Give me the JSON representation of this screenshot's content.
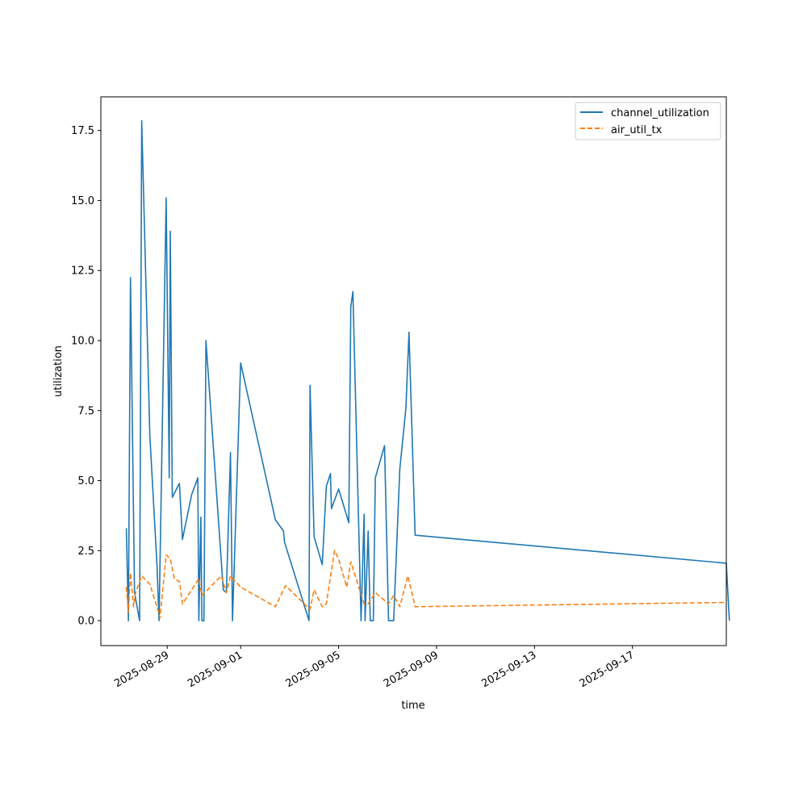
{
  "chart_data": {
    "type": "line",
    "title": "",
    "xlabel": "time",
    "ylabel": "utilization",
    "x_axis": {
      "type": "date",
      "range": [
        "2025-08-26T07:00",
        "2025-09-20T20:00"
      ],
      "ticks": [
        "2025-08-29",
        "2025-09-01",
        "2025-09-05",
        "2025-09-09",
        "2025-09-13",
        "2025-09-17"
      ]
    },
    "y_axis": {
      "range": [
        -0.89,
        18.7
      ],
      "ticks": [
        0.0,
        2.5,
        5.0,
        7.5,
        10.0,
        12.5,
        15.0,
        17.5
      ],
      "tick_labels": [
        "0.0",
        "2.5",
        "5.0",
        "7.5",
        "10.0",
        "12.5",
        "15.0",
        "17.5"
      ]
    },
    "grid": false,
    "legend_position": "top-right",
    "series": [
      {
        "name": "channel_utilization",
        "color": "#1f77b4",
        "dash": "solid",
        "points": [
          [
            "2025-08-27T08:00",
            3.3
          ],
          [
            "2025-08-27T10:00",
            0.0
          ],
          [
            "2025-08-27T12:00",
            12.25
          ],
          [
            "2025-08-27T16:00",
            1.0
          ],
          [
            "2025-08-27T21:00",
            0.0
          ],
          [
            "2025-08-27T23:00",
            17.85
          ],
          [
            "2025-08-28T07:00",
            6.6
          ],
          [
            "2025-08-28T14:00",
            2.0
          ],
          [
            "2025-08-28T16:00",
            0.0
          ],
          [
            "2025-08-28T23:00",
            15.1
          ],
          [
            "2025-08-29T02:00",
            5.1
          ],
          [
            "2025-08-29T03:00",
            13.9
          ],
          [
            "2025-08-29T05:00",
            4.4
          ],
          [
            "2025-08-29T12:00",
            4.9
          ],
          [
            "2025-08-29T15:00",
            2.9
          ],
          [
            "2025-08-30T00:00",
            4.5
          ],
          [
            "2025-08-30T06:00",
            5.1
          ],
          [
            "2025-08-30T07:00",
            0.0
          ],
          [
            "2025-08-30T09:00",
            3.7
          ],
          [
            "2025-08-30T10:00",
            0.0
          ],
          [
            "2025-08-30T12:00",
            0.0
          ],
          [
            "2025-08-30T14:00",
            10.0
          ],
          [
            "2025-08-31T07:00",
            1.1
          ],
          [
            "2025-08-31T10:00",
            1.0
          ],
          [
            "2025-08-31T14:00",
            6.0
          ],
          [
            "2025-08-31T16:00",
            0.0
          ],
          [
            "2025-09-01T00:00",
            9.2
          ],
          [
            "2025-09-02T10:00",
            3.6
          ],
          [
            "2025-09-02T18:00",
            3.2
          ],
          [
            "2025-09-02T19:00",
            2.8
          ],
          [
            "2025-09-03T19:00",
            0.0
          ],
          [
            "2025-09-03T20:00",
            8.4
          ],
          [
            "2025-09-04T00:00",
            3.0
          ],
          [
            "2025-09-04T08:00",
            2.0
          ],
          [
            "2025-09-04T12:00",
            4.8
          ],
          [
            "2025-09-04T16:00",
            5.25
          ],
          [
            "2025-09-04T17:00",
            4.0
          ],
          [
            "2025-09-05T00:00",
            4.7
          ],
          [
            "2025-09-05T10:00",
            3.5
          ],
          [
            "2025-09-05T12:00",
            11.2
          ],
          [
            "2025-09-05T14:00",
            11.75
          ],
          [
            "2025-09-05T22:00",
            0.0
          ],
          [
            "2025-09-06T01:00",
            3.8
          ],
          [
            "2025-09-06T02:00",
            0.0
          ],
          [
            "2025-09-06T05:00",
            3.2
          ],
          [
            "2025-09-06T07:00",
            0.0
          ],
          [
            "2025-09-06T10:00",
            0.0
          ],
          [
            "2025-09-06T12:00",
            5.1
          ],
          [
            "2025-09-06T21:00",
            6.25
          ],
          [
            "2025-09-07T01:00",
            0.0
          ],
          [
            "2025-09-07T06:00",
            0.0
          ],
          [
            "2025-09-07T12:00",
            5.4
          ],
          [
            "2025-09-07T18:00",
            7.6
          ],
          [
            "2025-09-07T21:00",
            10.3
          ],
          [
            "2025-09-08T03:00",
            3.05
          ],
          [
            "2025-09-20T20:00",
            2.05
          ],
          [
            "2025-09-20T23:00",
            0.0
          ]
        ]
      },
      {
        "name": "air_util_tx",
        "color": "#ff7f0e",
        "dash": "dashed",
        "points": [
          [
            "2025-08-27T08:00",
            1.2
          ],
          [
            "2025-08-27T10:00",
            0.3
          ],
          [
            "2025-08-27T12:00",
            1.7
          ],
          [
            "2025-08-27T15:00",
            0.5
          ],
          [
            "2025-08-27T17:00",
            1.0
          ],
          [
            "2025-08-27T23:00",
            1.6
          ],
          [
            "2025-08-28T07:00",
            1.3
          ],
          [
            "2025-08-28T14:00",
            0.5
          ],
          [
            "2025-08-28T17:00",
            0.1
          ],
          [
            "2025-08-28T23:00",
            2.35
          ],
          [
            "2025-08-29T03:00",
            2.2
          ],
          [
            "2025-08-29T07:00",
            1.5
          ],
          [
            "2025-08-29T12:00",
            1.4
          ],
          [
            "2025-08-29T15:00",
            0.6
          ],
          [
            "2025-08-30T07:00",
            1.5
          ],
          [
            "2025-08-30T10:00",
            0.9
          ],
          [
            "2025-08-31T05:00",
            1.6
          ],
          [
            "2025-08-31T10:00",
            1.0
          ],
          [
            "2025-08-31T14:00",
            1.6
          ],
          [
            "2025-09-01T00:00",
            1.2
          ],
          [
            "2025-09-02T10:00",
            0.5
          ],
          [
            "2025-09-02T20:00",
            1.25
          ],
          [
            "2025-09-03T20:00",
            0.4
          ],
          [
            "2025-09-04T00:00",
            1.1
          ],
          [
            "2025-09-04T08:00",
            0.5
          ],
          [
            "2025-09-04T12:00",
            0.6
          ],
          [
            "2025-09-04T20:00",
            2.5
          ],
          [
            "2025-09-05T00:00",
            2.2
          ],
          [
            "2025-09-05T08:00",
            1.2
          ],
          [
            "2025-09-05T12:00",
            2.1
          ],
          [
            "2025-09-06T01:00",
            0.6
          ],
          [
            "2025-09-06T05:00",
            0.6
          ],
          [
            "2025-09-06T12:00",
            1.0
          ],
          [
            "2025-09-07T01:00",
            0.6
          ],
          [
            "2025-09-07T06:00",
            0.9
          ],
          [
            "2025-09-07T12:00",
            0.5
          ],
          [
            "2025-09-07T20:00",
            1.6
          ],
          [
            "2025-09-08T03:00",
            0.5
          ],
          [
            "2025-09-20T20:00",
            0.65
          ]
        ]
      }
    ]
  }
}
